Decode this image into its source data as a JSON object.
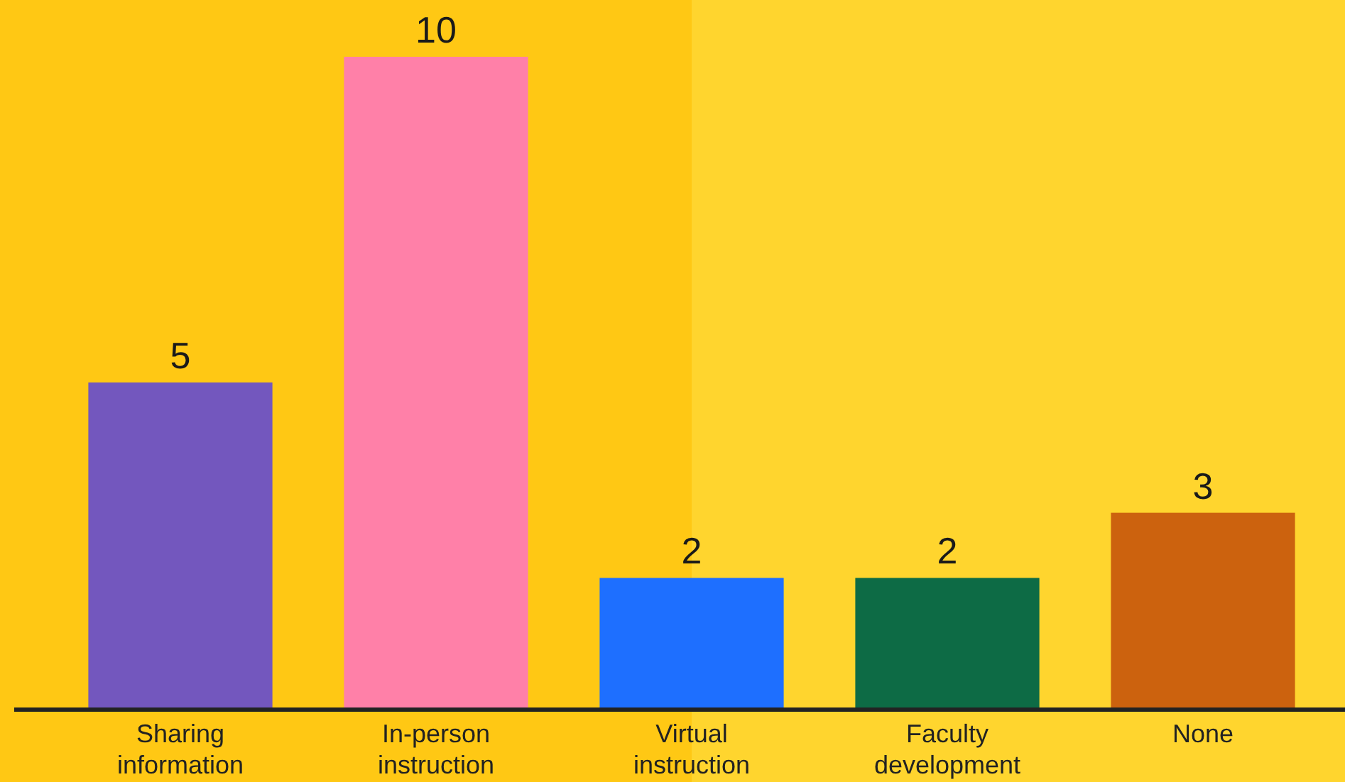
{
  "chart_data": {
    "type": "bar",
    "categories": [
      "Sharing information",
      "In-person instruction",
      "Virtual instruction",
      "Faculty development",
      "None"
    ],
    "values": [
      5,
      10,
      2,
      2,
      3
    ],
    "colors": [
      "#7357be",
      "#ff80a8",
      "#1e6fff",
      "#0d6b45",
      "#cc620e"
    ],
    "data_labels": true
  }
}
